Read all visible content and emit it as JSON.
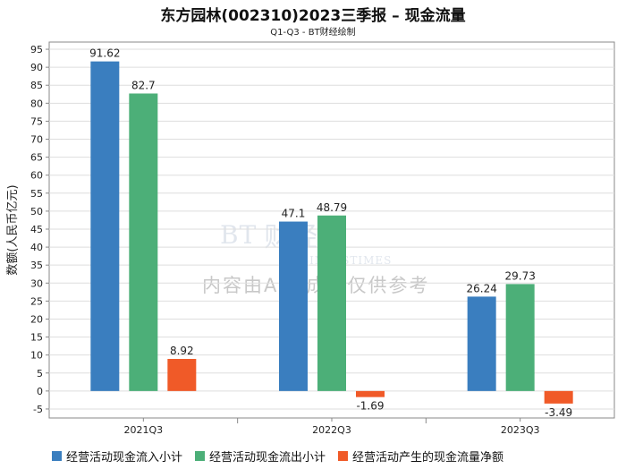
{
  "colors": {
    "series": [
      "#3a7ebf",
      "#4caf78",
      "#f05a28"
    ],
    "grid": "#dedede",
    "axis": "#888888",
    "text": "#222222"
  },
  "watermark": {
    "en": "BT",
    "cn": "财经",
    "sub": "BUSINESSTIMES",
    "notice": "内容由AI生成，仅供参考"
  },
  "chart_data": {
    "type": "bar",
    "title": "东方园林(002310)2023三季报 – 现金流量",
    "subtitle": "Q1-Q3 - BT财经绘制",
    "ylabel": "数额(人民币亿元)",
    "xlabel": "",
    "ylim": [
      -7.5,
      97
    ],
    "yticks": [
      -5,
      0,
      5,
      10,
      15,
      20,
      25,
      30,
      35,
      40,
      45,
      50,
      55,
      60,
      65,
      70,
      75,
      80,
      85,
      90,
      95
    ],
    "categories": [
      "2021Q3",
      "2022Q3",
      "2023Q3"
    ],
    "series": [
      {
        "name": "经营活动现金流入小计",
        "values": [
          91.62,
          47.1,
          26.24
        ],
        "labels": [
          "91.62",
          "47.1",
          "26.24"
        ]
      },
      {
        "name": "经营活动现金流出小计",
        "values": [
          82.7,
          48.79,
          29.73
        ],
        "labels": [
          "82.7",
          "48.79",
          "29.73"
        ]
      },
      {
        "name": "经营活动产生的现金流量净额",
        "values": [
          8.92,
          -1.69,
          -3.49
        ],
        "labels": [
          "8.92",
          "-1.69",
          "-3.49"
        ]
      }
    ],
    "legend_position": "bottom"
  }
}
